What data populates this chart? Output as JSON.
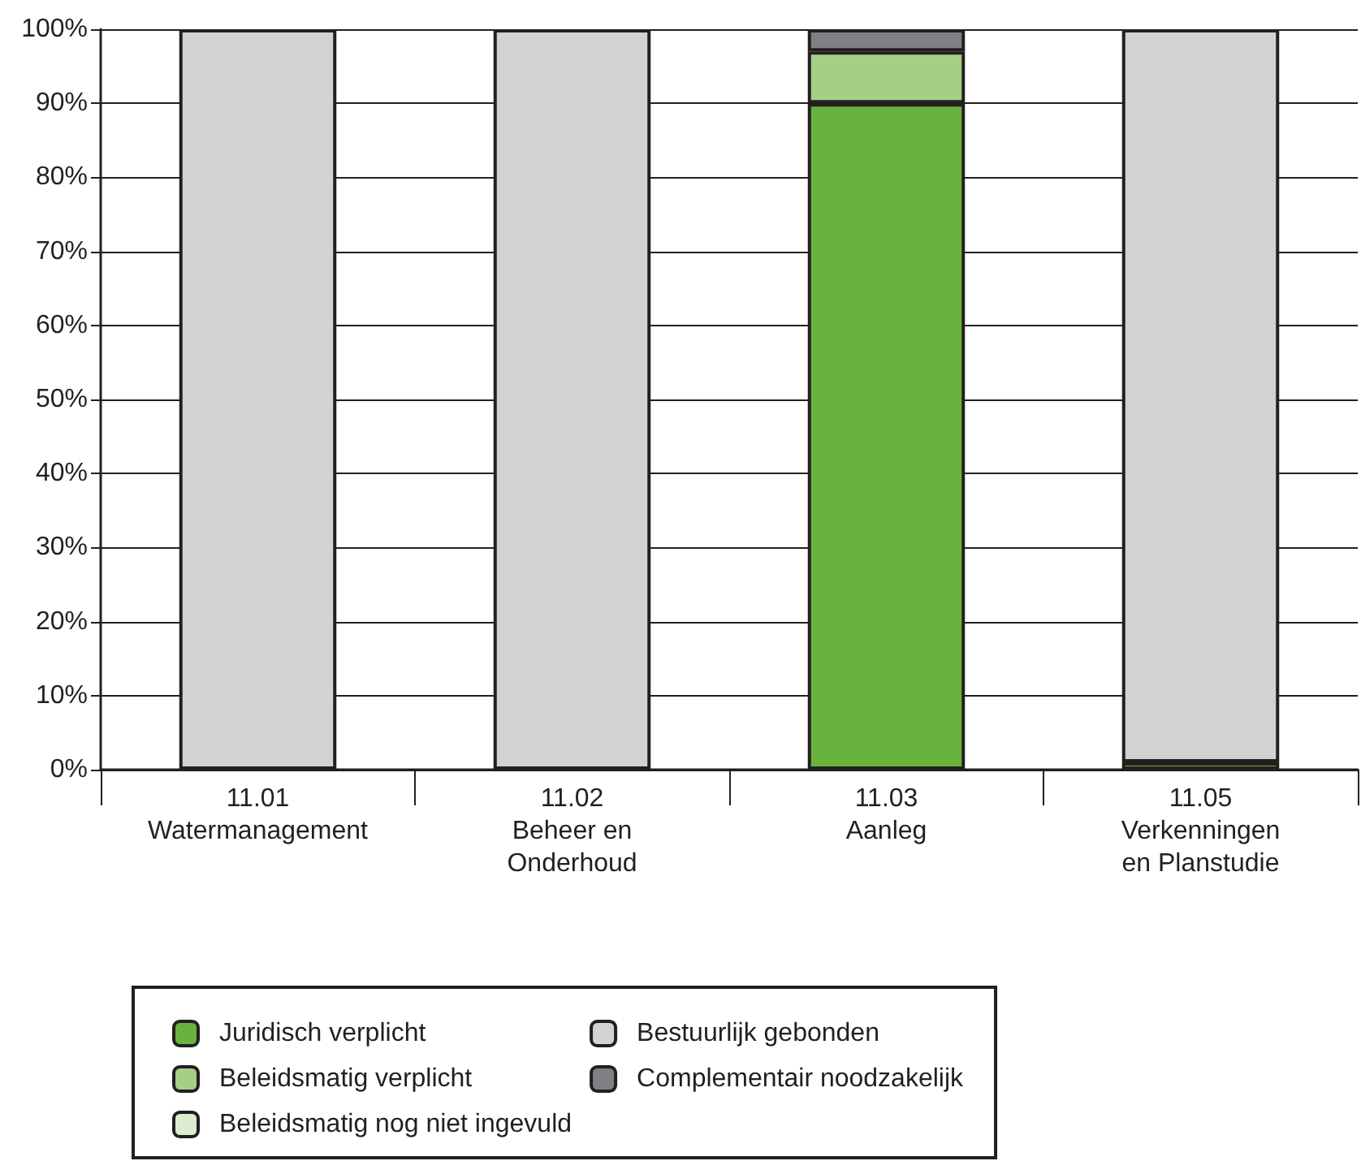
{
  "chart_data": {
    "type": "bar",
    "stacked": true,
    "categories": [
      "11.01\nWatermanagement",
      "11.02\nBeheer en\nOnderhoud",
      "11.03\nAanleg",
      "11.05\nVerkenningen\nen Planstudie"
    ],
    "series": [
      {
        "name": "Juridisch verplicht",
        "color": "#6ab23e",
        "values": [
          0,
          0,
          90,
          1
        ]
      },
      {
        "name": "Beleidsmatig verplicht",
        "color": "#a5cf86",
        "values": [
          0,
          0,
          7,
          0
        ]
      },
      {
        "name": "Beleidsmatig nog niet ingevuld",
        "color": "#dbeccf",
        "values": [
          0,
          0,
          0,
          0
        ]
      },
      {
        "name": "Bestuurlijk gebonden",
        "color": "#d1d2d4",
        "values": [
          100,
          100,
          0,
          99
        ]
      },
      {
        "name": "Complementair noodzakelijk",
        "color": "#7f8083",
        "values": [
          0,
          0,
          3,
          0
        ]
      }
    ],
    "ylim": [
      0,
      100
    ],
    "yticks": [
      {
        "value": 0,
        "label": "0%"
      },
      {
        "value": 10,
        "label": "10%"
      },
      {
        "value": 20,
        "label": "20%"
      },
      {
        "value": 30,
        "label": "30%"
      },
      {
        "value": 40,
        "label": "40%"
      },
      {
        "value": 50,
        "label": "50%"
      },
      {
        "value": 60,
        "label": "60%"
      },
      {
        "value": 70,
        "label": "70%"
      },
      {
        "value": 80,
        "label": "80%"
      },
      {
        "value": 90,
        "label": "90%"
      },
      {
        "value": 100,
        "label": "100%"
      }
    ],
    "grid": "y",
    "legend": "bottom"
  }
}
